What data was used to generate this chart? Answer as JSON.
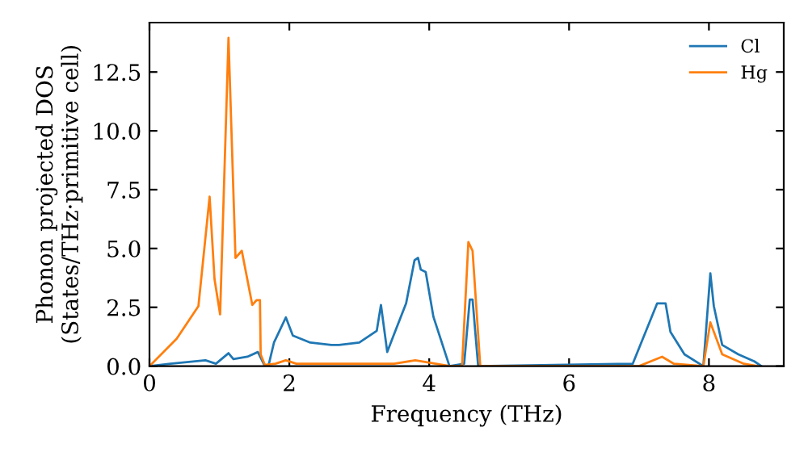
{
  "chart_data": {
    "type": "line",
    "xlabel": "Frequency (THz)",
    "ylabel": "Phonon projected DOS\n(States/THz·primitive cell)",
    "xlim": [
      0,
      9.07
    ],
    "ylim": [
      0,
      14.6
    ],
    "xticks": [
      0,
      2,
      4,
      6,
      8
    ],
    "yticks": [
      {
        "value": 0,
        "label": "0.0"
      },
      2.5,
      {
        "value": 5,
        "label": "5.0"
      },
      7.5,
      {
        "value": 10,
        "label": "10.0"
      },
      12.5
    ],
    "legend": "top right",
    "grid": false,
    "marker": "none",
    "line_style": "solid",
    "series": [
      {
        "name": "Cl",
        "color": "#1f77b4",
        "x": [
          0,
          0.3,
          0.8,
          0.95,
          1.13,
          1.2,
          1.4,
          1.55,
          1.65,
          1.7,
          1.78,
          1.82,
          1.95,
          2.05,
          2.3,
          2.6,
          2.71,
          3.0,
          3.25,
          3.31,
          3.4,
          3.49,
          3.67,
          3.79,
          3.84,
          3.88,
          3.95,
          4.06,
          4.29,
          4.5,
          4.58,
          4.62,
          4.7,
          6.91,
          7.26,
          7.38,
          7.45,
          7.65,
          7.92,
          8.02,
          8.07,
          8.19,
          8.42,
          8.65,
          8.75
        ],
        "values": [
          0,
          0.1,
          0.25,
          0.1,
          0.55,
          0.3,
          0.4,
          0.6,
          0,
          0,
          1.0,
          1.25,
          2.07,
          1.3,
          1.0,
          0.9,
          0.9,
          1.0,
          1.5,
          2.6,
          0.6,
          1.3,
          2.67,
          4.5,
          4.6,
          4.1,
          4.0,
          2.1,
          0,
          0.1,
          2.83,
          2.83,
          0,
          0.1,
          2.67,
          2.67,
          1.45,
          0.5,
          0,
          3.94,
          2.55,
          0.9,
          0.5,
          0.2,
          0
        ]
      },
      {
        "name": "Hg",
        "color": "#ff7f0e",
        "x": [
          0,
          0.39,
          0.7,
          0.86,
          0.93,
          1.01,
          1.13,
          1.23,
          1.32,
          1.47,
          1.53,
          1.58,
          1.59,
          1.65,
          1.8,
          1.95,
          2.1,
          3.5,
          3.8,
          4.3,
          4.47,
          4.56,
          4.62,
          4.73,
          7.0,
          7.33,
          7.5,
          7.92,
          8.02,
          8.19,
          8.5,
          8.7
        ],
        "values": [
          0,
          1.17,
          2.55,
          7.2,
          3.7,
          2.2,
          13.95,
          4.6,
          4.9,
          2.6,
          2.8,
          2.8,
          0.5,
          0.05,
          0.1,
          0.25,
          0.1,
          0.1,
          0.25,
          0,
          0,
          5.27,
          4.9,
          0,
          0,
          0.4,
          0.1,
          0,
          1.86,
          0.5,
          0.1,
          0
        ]
      }
    ]
  }
}
